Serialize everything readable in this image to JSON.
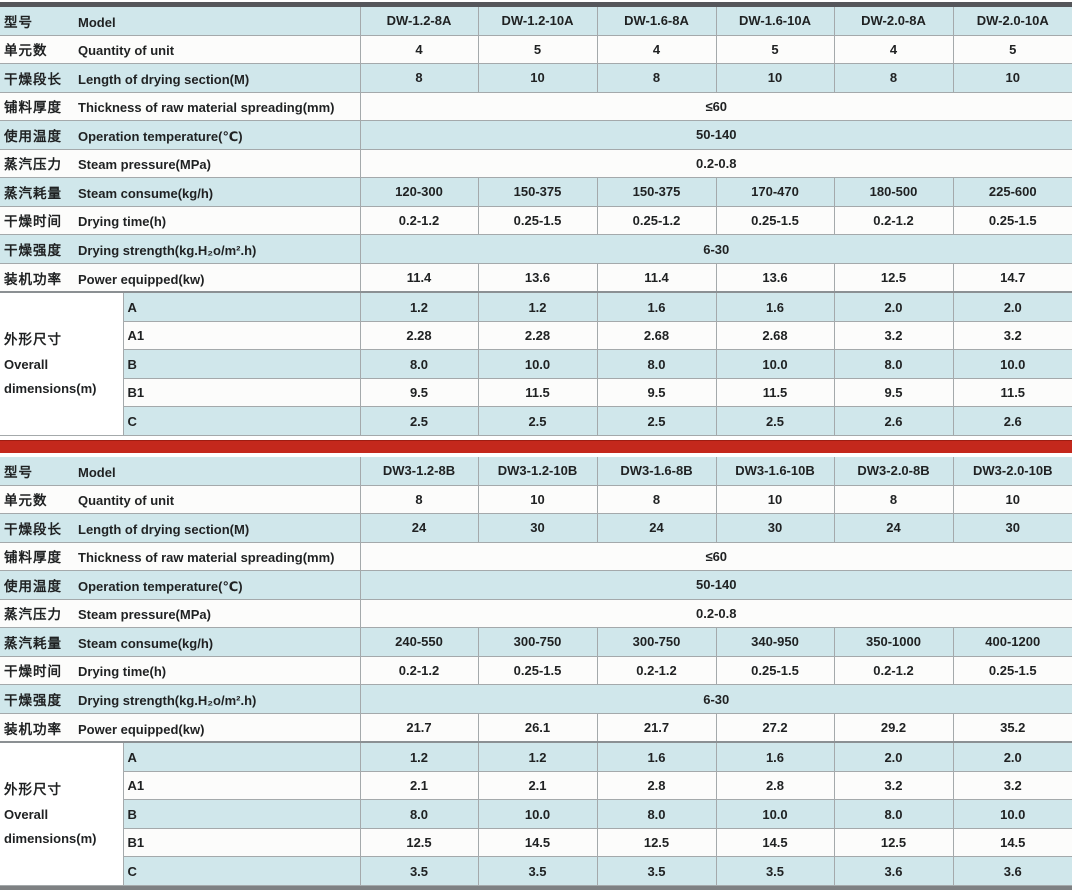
{
  "page": {
    "top_bar_color": "#55565a",
    "divider_bar_color": "#c4281c",
    "bottom_bar_color": "#7e8183",
    "row_highlight_color": "#d0e7eb",
    "text_color": "#1f2122"
  },
  "tables": [
    {
      "series": "A",
      "rows": [
        {
          "type": "values",
          "cn": "型号",
          "en": "Model",
          "values": [
            "DW-1.2-8A",
            "DW-1.2-10A",
            "DW-1.6-8A",
            "DW-1.6-10A",
            "DW-2.0-8A",
            "DW-2.0-10A"
          ]
        },
        {
          "type": "values",
          "cn": "单元数",
          "en": "Quantity of unit",
          "values": [
            "4",
            "5",
            "4",
            "5",
            "4",
            "5"
          ]
        },
        {
          "type": "values",
          "cn": "干燥段长",
          "en": "Length of drying section(M)",
          "values": [
            "8",
            "10",
            "8",
            "10",
            "8",
            "10"
          ]
        },
        {
          "type": "merged",
          "cn": "铺料厚度",
          "en": "Thickness of raw material spreading(mm)",
          "value": "≤60"
        },
        {
          "type": "merged",
          "cn": "使用温度",
          "en": "Operation temperature(℃)",
          "value": "50-140"
        },
        {
          "type": "merged",
          "cn": "蒸汽压力",
          "en": "Steam pressure(MPa)",
          "value": "0.2-0.8"
        },
        {
          "type": "values",
          "cn": "蒸汽耗量",
          "en": "Steam consume(kg/h)",
          "values": [
            "120-300",
            "150-375",
            "150-375",
            "170-470",
            "180-500",
            "225-600"
          ]
        },
        {
          "type": "values",
          "cn": "干燥时间",
          "en": "Drying time(h)",
          "values": [
            "0.2-1.2",
            "0.25-1.5",
            "0.25-1.2",
            "0.25-1.5",
            "0.2-1.2",
            "0.25-1.5"
          ]
        },
        {
          "type": "merged",
          "cn": "干燥强度",
          "en": "Drying strength(kg.H₂o/m².h)",
          "value": "6-30"
        },
        {
          "type": "values",
          "cn": "装机功率",
          "en": "Power equipped(kw)",
          "values": [
            "11.4",
            "13.6",
            "11.4",
            "13.6",
            "12.5",
            "14.7"
          ]
        },
        {
          "type": "dims",
          "label_lines": [
            "外形尺寸",
            "Overall",
            "dimensions(m)"
          ],
          "subrows": [
            {
              "sub": "A",
              "values": [
                "1.2",
                "1.2",
                "1.6",
                "1.6",
                "2.0",
                "2.0"
              ]
            },
            {
              "sub": "A1",
              "values": [
                "2.28",
                "2.28",
                "2.68",
                "2.68",
                "3.2",
                "3.2"
              ]
            },
            {
              "sub": "B",
              "values": [
                "8.0",
                "10.0",
                "8.0",
                "10.0",
                "8.0",
                "10.0"
              ]
            },
            {
              "sub": "B1",
              "values": [
                "9.5",
                "11.5",
                "9.5",
                "11.5",
                "9.5",
                "11.5"
              ]
            },
            {
              "sub": "C",
              "values": [
                "2.5",
                "2.5",
                "2.5",
                "2.5",
                "2.6",
                "2.6"
              ]
            }
          ]
        }
      ]
    },
    {
      "series": "B",
      "rows": [
        {
          "type": "values",
          "cn": "型号",
          "en": "Model",
          "values": [
            "DW3-1.2-8B",
            "DW3-1.2-10B",
            "DW3-1.6-8B",
            "DW3-1.6-10B",
            "DW3-2.0-8B",
            "DW3-2.0-10B"
          ]
        },
        {
          "type": "values",
          "cn": "单元数",
          "en": "Quantity of unit",
          "values": [
            "8",
            "10",
            "8",
            "10",
            "8",
            "10"
          ]
        },
        {
          "type": "values",
          "cn": "干燥段长",
          "en": "Length of drying section(M)",
          "values": [
            "24",
            "30",
            "24",
            "30",
            "24",
            "30"
          ]
        },
        {
          "type": "merged",
          "cn": "铺料厚度",
          "en": "Thickness of raw material spreading(mm)",
          "value": "≤60"
        },
        {
          "type": "merged",
          "cn": "使用温度",
          "en": "Operation temperature(℃)",
          "value": "50-140"
        },
        {
          "type": "merged",
          "cn": "蒸汽压力",
          "en": "Steam pressure(MPa)",
          "value": "0.2-0.8"
        },
        {
          "type": "values",
          "cn": "蒸汽耗量",
          "en": "Steam consume(kg/h)",
          "values": [
            "240-550",
            "300-750",
            "300-750",
            "340-950",
            "350-1000",
            "400-1200"
          ]
        },
        {
          "type": "values",
          "cn": "干燥时间",
          "en": "Drying time(h)",
          "values": [
            "0.2-1.2",
            "0.25-1.5",
            "0.2-1.2",
            "0.25-1.5",
            "0.2-1.2",
            "0.25-1.5"
          ]
        },
        {
          "type": "merged",
          "cn": "干燥强度",
          "en": "Drying strength(kg.H₂o/m².h)",
          "value": "6-30"
        },
        {
          "type": "values",
          "cn": "装机功率",
          "en": "Power equipped(kw)",
          "values": [
            "21.7",
            "26.1",
            "21.7",
            "27.2",
            "29.2",
            "35.2"
          ]
        },
        {
          "type": "dims",
          "label_lines": [
            "外形尺寸",
            "Overall",
            "dimensions(m)"
          ],
          "subrows": [
            {
              "sub": "A",
              "values": [
                "1.2",
                "1.2",
                "1.6",
                "1.6",
                "2.0",
                "2.0"
              ]
            },
            {
              "sub": "A1",
              "values": [
                "2.1",
                "2.1",
                "2.8",
                "2.8",
                "3.2",
                "3.2"
              ]
            },
            {
              "sub": "B",
              "values": [
                "8.0",
                "10.0",
                "8.0",
                "10.0",
                "8.0",
                "10.0"
              ]
            },
            {
              "sub": "B1",
              "values": [
                "12.5",
                "14.5",
                "12.5",
                "14.5",
                "12.5",
                "14.5"
              ]
            },
            {
              "sub": "C",
              "values": [
                "3.5",
                "3.5",
                "3.5",
                "3.5",
                "3.6",
                "3.6"
              ]
            }
          ]
        }
      ]
    }
  ]
}
